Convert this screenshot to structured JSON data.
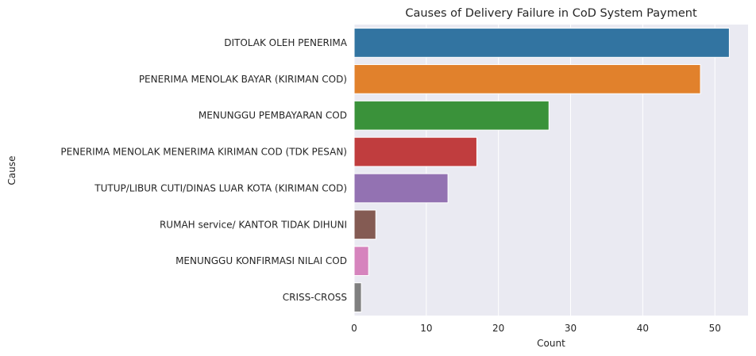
{
  "chart_data": {
    "type": "bar",
    "orientation": "horizontal",
    "title": "Causes of Delivery Failure in CoD System Payment",
    "xlabel": "Count",
    "ylabel": "Cause",
    "categories": [
      "DITOLAK OLEH PENERIMA",
      "PENERIMA MENOLAK BAYAR (KIRIMAN COD)",
      "MENUNGGU PEMBAYARAN COD",
      "PENERIMA MENOLAK MENERIMA KIRIMAN COD (TDK PESAN)",
      "TUTUP/LIBUR CUTI/DINAS LUAR KOTA (KIRIMAN COD)",
      "RUMAH service/ KANTOR TIDAK DIHUNI",
      "MENUNGGU KONFIRMASI NILAI COD",
      "CRISS-CROSS"
    ],
    "values": [
      52,
      48,
      27,
      17,
      13,
      3,
      2,
      1
    ],
    "colors": [
      "#3274a1",
      "#e1812c",
      "#3a923a",
      "#c03d3e",
      "#9372b2",
      "#845b53",
      "#d684bd",
      "#7f7f7f"
    ],
    "xlim": [
      0,
      54.6
    ],
    "xticks": [
      "0",
      "10",
      "20",
      "30",
      "40",
      "50"
    ],
    "grid": true,
    "background": "#eaeaf2"
  }
}
